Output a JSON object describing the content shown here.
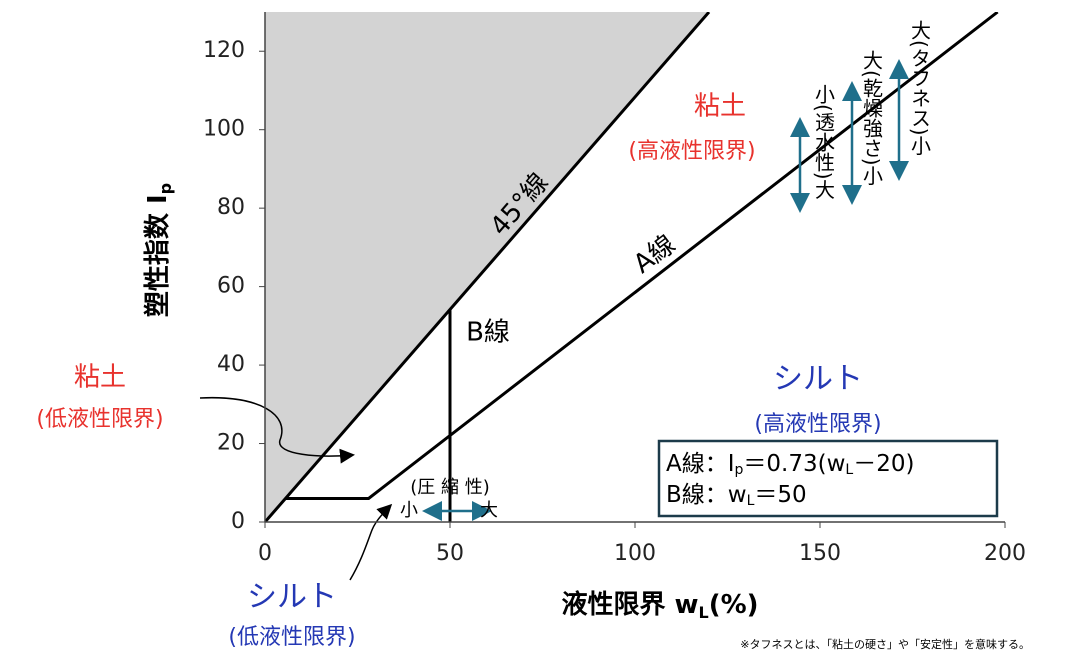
{
  "chart_data": {
    "type": "line",
    "xlabel": {
      "main": "液性限界 w",
      "sub": "L",
      "tail": "(%)"
    },
    "ylabel": {
      "main": "塑性指数 I",
      "sub": "p"
    },
    "xlim": [
      0,
      200
    ],
    "ylim": [
      0,
      130
    ],
    "xticks": [
      0,
      50,
      100,
      150,
      200
    ],
    "yticks": [
      0,
      20,
      40,
      60,
      80,
      100,
      120
    ],
    "shade_color": "#d3d3d3",
    "series": [
      {
        "name": "45°線",
        "color": "#000000",
        "x": [
          0,
          120
        ],
        "values": [
          0,
          130
        ]
      },
      {
        "name": "A線",
        "color": "#000000",
        "x": [
          5.5,
          28,
          198
        ],
        "values": [
          6,
          6,
          130
        ]
      },
      {
        "name": "B線",
        "color": "#000000",
        "x": [
          50,
          50
        ],
        "values": [
          0,
          54
        ]
      }
    ],
    "annotations": {
      "clay_high": [
        "粘土",
        "(高液性限界)"
      ],
      "clay_low": [
        "粘土",
        "(低液性限界)"
      ],
      "silt_high": [
        "シルト",
        "(高液性限界)"
      ],
      "silt_low": [
        "シルト",
        "(低液性限界)"
      ],
      "toughness": "大(タフネス)小",
      "dry_strength": "大(乾燥強さ)小",
      "permeability": "小(透水性)大",
      "compressibility": [
        "(圧 縮 性)",
        "小",
        "大"
      ],
      "equation_a": [
        "A線：I",
        "p",
        "＝0.73(w",
        "L",
        "－20)"
      ],
      "equation_b": [
        "B線：w",
        "L",
        "＝50"
      ]
    },
    "footnote": "※タフネスとは、「粘土の硬さ」や「安定性」を意味する。"
  }
}
